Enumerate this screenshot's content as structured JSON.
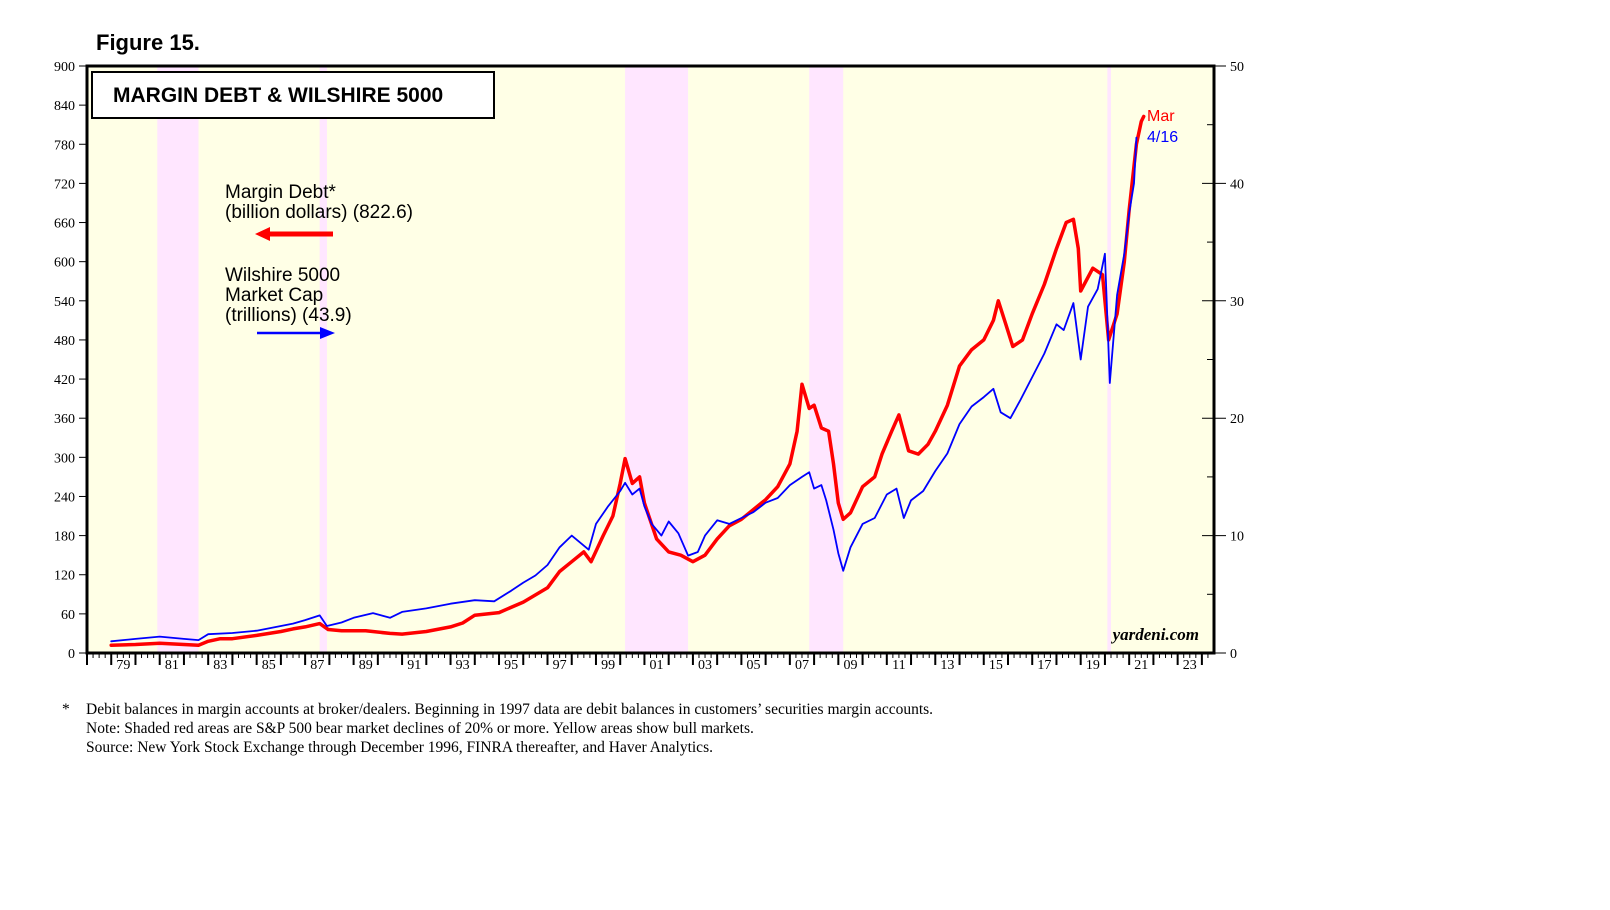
{
  "figure_label": "Figure 15.",
  "colors": {
    "margin_debt": "#ff0000",
    "wilshire": "#0000ff",
    "bull_fill": "#ffffe6",
    "bear_fill": "#ffe6ff"
  },
  "footnotes": {
    "star": "*",
    "line1": "Debit balances in margin accounts at broker/dealers. Beginning in 1997 data are debit balances in customers’ securities margin accounts.",
    "line2": "Note: Shaded red areas are S&P 500 bear market declines of 20% or more. Yellow areas show bull markets.",
    "line3": "Source: New York Stock Exchange through December 1996, FINRA thereafter, and Haver Analytics."
  },
  "chart_data": {
    "type": "line",
    "title": "MARGIN DEBT & WILSHIRE 5000",
    "credit": "yardeni.com",
    "x_range": [
      1978.0,
      2024.5
    ],
    "x_tick_labels": [
      {
        "year": 1979,
        "label": "79"
      },
      {
        "year": 1981,
        "label": "81"
      },
      {
        "year": 1983,
        "label": "83"
      },
      {
        "year": 1985,
        "label": "85"
      },
      {
        "year": 1987,
        "label": "87"
      },
      {
        "year": 1989,
        "label": "89"
      },
      {
        "year": 1991,
        "label": "91"
      },
      {
        "year": 1993,
        "label": "93"
      },
      {
        "year": 1995,
        "label": "95"
      },
      {
        "year": 1997,
        "label": "97"
      },
      {
        "year": 1999,
        "label": "99"
      },
      {
        "year": 2001,
        "label": "01"
      },
      {
        "year": 2003,
        "label": "03"
      },
      {
        "year": 2005,
        "label": "05"
      },
      {
        "year": 2007,
        "label": "07"
      },
      {
        "year": 2009,
        "label": "09"
      },
      {
        "year": 2011,
        "label": "11"
      },
      {
        "year": 2013,
        "label": "13"
      },
      {
        "year": 2015,
        "label": "15"
      },
      {
        "year": 2017,
        "label": "17"
      },
      {
        "year": 2019,
        "label": "19"
      },
      {
        "year": 2021,
        "label": "21"
      },
      {
        "year": 2023,
        "label": "23"
      }
    ],
    "y_left": {
      "range": [
        0,
        900
      ],
      "ticks": [
        0,
        60,
        120,
        180,
        240,
        300,
        360,
        420,
        480,
        540,
        600,
        660,
        720,
        780,
        840,
        900
      ]
    },
    "y_right": {
      "range": [
        0,
        50
      ],
      "ticks": [
        0,
        10,
        20,
        30,
        40,
        50
      ]
    },
    "bull_market_span": [
      1978.0,
      2024.5
    ],
    "bear_markets": [
      [
        1980.9,
        1982.6
      ],
      [
        1987.6,
        1987.9
      ],
      [
        2000.2,
        2002.8
      ],
      [
        2007.8,
        2009.2
      ],
      [
        2020.1,
        2020.25
      ]
    ],
    "legend": {
      "margin_debt": {
        "line1": "Margin Debt*",
        "line2": "(billion dollars) (822.6)",
        "arrow": "left"
      },
      "wilshire": {
        "line1": "Wilshire 5000",
        "line2": "Market Cap",
        "line3": "(trillions) (43.9)",
        "arrow": "right"
      }
    },
    "end_labels": {
      "margin_debt": "Mar",
      "wilshire": "4/16"
    },
    "series": [
      {
        "name": "Margin Debt",
        "axis": "left",
        "unit": "billion dollars",
        "points": [
          [
            1979.0,
            12
          ],
          [
            1980.0,
            13
          ],
          [
            1981.0,
            15
          ],
          [
            1982.0,
            13
          ],
          [
            1982.6,
            12
          ],
          [
            1983.0,
            18
          ],
          [
            1983.5,
            22
          ],
          [
            1984.0,
            22
          ],
          [
            1985.0,
            27
          ],
          [
            1986.0,
            33
          ],
          [
            1986.5,
            37
          ],
          [
            1987.0,
            40
          ],
          [
            1987.6,
            45
          ],
          [
            1987.95,
            36
          ],
          [
            1988.5,
            34
          ],
          [
            1989.5,
            34
          ],
          [
            1990.5,
            30
          ],
          [
            1991.0,
            29
          ],
          [
            1992.0,
            33
          ],
          [
            1993.0,
            40
          ],
          [
            1993.5,
            46
          ],
          [
            1994.0,
            58
          ],
          [
            1995.0,
            62
          ],
          [
            1996.0,
            78
          ],
          [
            1997.0,
            100
          ],
          [
            1997.5,
            125
          ],
          [
            1998.0,
            140
          ],
          [
            1998.5,
            155
          ],
          [
            1998.8,
            140
          ],
          [
            1999.3,
            180
          ],
          [
            1999.7,
            210
          ],
          [
            2000.0,
            260
          ],
          [
            2000.2,
            298
          ],
          [
            2000.5,
            260
          ],
          [
            2000.8,
            270
          ],
          [
            2001.0,
            230
          ],
          [
            2001.5,
            175
          ],
          [
            2002.0,
            155
          ],
          [
            2002.5,
            150
          ],
          [
            2003.0,
            140
          ],
          [
            2003.5,
            150
          ],
          [
            2004.0,
            175
          ],
          [
            2004.5,
            195
          ],
          [
            2005.0,
            205
          ],
          [
            2005.5,
            220
          ],
          [
            2006.0,
            235
          ],
          [
            2006.5,
            255
          ],
          [
            2007.0,
            290
          ],
          [
            2007.3,
            340
          ],
          [
            2007.5,
            412
          ],
          [
            2007.8,
            375
          ],
          [
            2008.0,
            380
          ],
          [
            2008.3,
            345
          ],
          [
            2008.6,
            340
          ],
          [
            2008.8,
            290
          ],
          [
            2009.0,
            230
          ],
          [
            2009.2,
            205
          ],
          [
            2009.5,
            215
          ],
          [
            2010.0,
            255
          ],
          [
            2010.5,
            270
          ],
          [
            2010.8,
            305
          ],
          [
            2011.2,
            340
          ],
          [
            2011.5,
            365
          ],
          [
            2011.9,
            310
          ],
          [
            2012.3,
            305
          ],
          [
            2012.7,
            320
          ],
          [
            2013.0,
            340
          ],
          [
            2013.5,
            380
          ],
          [
            2014.0,
            440
          ],
          [
            2014.5,
            465
          ],
          [
            2015.0,
            480
          ],
          [
            2015.4,
            510
          ],
          [
            2015.6,
            540
          ],
          [
            2015.9,
            505
          ],
          [
            2016.2,
            470
          ],
          [
            2016.6,
            480
          ],
          [
            2017.0,
            520
          ],
          [
            2017.5,
            565
          ],
          [
            2018.0,
            620
          ],
          [
            2018.4,
            660
          ],
          [
            2018.7,
            665
          ],
          [
            2018.9,
            620
          ],
          [
            2019.0,
            555
          ],
          [
            2019.5,
            590
          ],
          [
            2019.9,
            580
          ],
          [
            2020.15,
            480
          ],
          [
            2020.5,
            520
          ],
          [
            2020.8,
            600
          ],
          [
            2021.0,
            680
          ],
          [
            2021.3,
            780
          ],
          [
            2021.5,
            815
          ],
          [
            2021.6,
            822.6
          ]
        ]
      },
      {
        "name": "Wilshire 5000 Market Cap",
        "axis": "right",
        "unit": "trillions",
        "points": [
          [
            1979.0,
            1.0
          ],
          [
            1980.0,
            1.2
          ],
          [
            1981.0,
            1.4
          ],
          [
            1982.0,
            1.2
          ],
          [
            1982.6,
            1.1
          ],
          [
            1983.0,
            1.6
          ],
          [
            1984.0,
            1.7
          ],
          [
            1985.0,
            1.9
          ],
          [
            1986.0,
            2.3
          ],
          [
            1986.5,
            2.5
          ],
          [
            1987.0,
            2.8
          ],
          [
            1987.6,
            3.2
          ],
          [
            1987.9,
            2.3
          ],
          [
            1988.5,
            2.6
          ],
          [
            1989.0,
            3.0
          ],
          [
            1989.8,
            3.4
          ],
          [
            1990.5,
            3.0
          ],
          [
            1991.0,
            3.5
          ],
          [
            1992.0,
            3.8
          ],
          [
            1993.0,
            4.2
          ],
          [
            1994.0,
            4.5
          ],
          [
            1994.8,
            4.4
          ],
          [
            1995.5,
            5.3
          ],
          [
            1996.0,
            6.0
          ],
          [
            1996.5,
            6.6
          ],
          [
            1997.0,
            7.5
          ],
          [
            1997.5,
            9.0
          ],
          [
            1998.0,
            10.0
          ],
          [
            1998.7,
            8.8
          ],
          [
            1999.0,
            11.0
          ],
          [
            1999.5,
            12.5
          ],
          [
            2000.0,
            13.8
          ],
          [
            2000.2,
            14.5
          ],
          [
            2000.5,
            13.5
          ],
          [
            2000.8,
            14.0
          ],
          [
            2001.0,
            12.5
          ],
          [
            2001.3,
            11.0
          ],
          [
            2001.7,
            10.0
          ],
          [
            2002.0,
            11.2
          ],
          [
            2002.4,
            10.2
          ],
          [
            2002.8,
            8.3
          ],
          [
            2003.2,
            8.6
          ],
          [
            2003.5,
            10.0
          ],
          [
            2004.0,
            11.3
          ],
          [
            2004.5,
            11.0
          ],
          [
            2005.0,
            11.5
          ],
          [
            2005.5,
            12.0
          ],
          [
            2006.0,
            12.8
          ],
          [
            2006.5,
            13.2
          ],
          [
            2007.0,
            14.3
          ],
          [
            2007.5,
            15.0
          ],
          [
            2007.8,
            15.4
          ],
          [
            2008.0,
            14.0
          ],
          [
            2008.3,
            14.3
          ],
          [
            2008.5,
            13.0
          ],
          [
            2008.8,
            10.5
          ],
          [
            2009.0,
            8.5
          ],
          [
            2009.2,
            7.0
          ],
          [
            2009.5,
            9.0
          ],
          [
            2010.0,
            11.0
          ],
          [
            2010.5,
            11.5
          ],
          [
            2011.0,
            13.5
          ],
          [
            2011.4,
            14.0
          ],
          [
            2011.7,
            11.5
          ],
          [
            2012.0,
            13.0
          ],
          [
            2012.5,
            13.8
          ],
          [
            2013.0,
            15.5
          ],
          [
            2013.5,
            17.0
          ],
          [
            2014.0,
            19.5
          ],
          [
            2014.5,
            21.0
          ],
          [
            2015.0,
            21.8
          ],
          [
            2015.4,
            22.5
          ],
          [
            2015.7,
            20.5
          ],
          [
            2016.1,
            20.0
          ],
          [
            2016.5,
            21.5
          ],
          [
            2017.0,
            23.5
          ],
          [
            2017.5,
            25.5
          ],
          [
            2018.0,
            28.0
          ],
          [
            2018.3,
            27.5
          ],
          [
            2018.7,
            29.8
          ],
          [
            2019.0,
            25.0
          ],
          [
            2019.3,
            29.5
          ],
          [
            2019.7,
            31.0
          ],
          [
            2020.0,
            34.0
          ],
          [
            2020.2,
            23.0
          ],
          [
            2020.5,
            30.5
          ],
          [
            2020.8,
            34.0
          ],
          [
            2021.0,
            37.5
          ],
          [
            2021.2,
            40.0
          ],
          [
            2021.3,
            43.9
          ]
        ]
      }
    ]
  }
}
